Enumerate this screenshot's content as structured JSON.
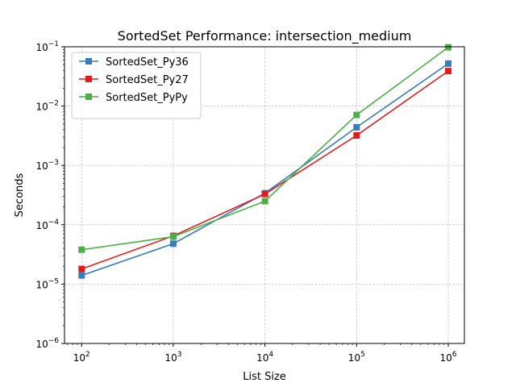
{
  "chart_data": {
    "type": "line",
    "title": "SortedSet Performance: intersection_medium",
    "xlabel": "List Size",
    "ylabel": "Seconds",
    "xscale": "log",
    "yscale": "log",
    "xlim": [
      65,
      1500000
    ],
    "ylim": [
      1e-06,
      0.1
    ],
    "x": [
      100,
      1000,
      10000,
      100000,
      1000000
    ],
    "xticks": [
      100,
      1000,
      10000,
      100000,
      1000000
    ],
    "xtick_labels": [
      {
        "base": "10",
        "exp": "2"
      },
      {
        "base": "10",
        "exp": "3"
      },
      {
        "base": "10",
        "exp": "4"
      },
      {
        "base": "10",
        "exp": "5"
      },
      {
        "base": "10",
        "exp": "6"
      }
    ],
    "yticks": [
      1e-06,
      1e-05,
      0.0001,
      0.001,
      0.01,
      0.1
    ],
    "ytick_labels": [
      {
        "base": "10",
        "exp": "−6"
      },
      {
        "base": "10",
        "exp": "−5"
      },
      {
        "base": "10",
        "exp": "−4"
      },
      {
        "base": "10",
        "exp": "−3"
      },
      {
        "base": "10",
        "exp": "−2"
      },
      {
        "base": "10",
        "exp": "−1"
      }
    ],
    "grid": true,
    "legend_position": "top-left",
    "series": [
      {
        "name": "SortedSet_Py36",
        "color": "#377eb8",
        "marker": "square",
        "values": [
          1.4e-05,
          4.8e-05,
          0.00034,
          0.0044,
          0.052
        ]
      },
      {
        "name": "SortedSet_Py27",
        "color": "#e41a1c",
        "marker": "square",
        "values": [
          1.8e-05,
          6.5e-05,
          0.00033,
          0.0032,
          0.039
        ]
      },
      {
        "name": "SortedSet_PyPy",
        "color": "#4daf4a",
        "marker": "square",
        "values": [
          3.8e-05,
          6.3e-05,
          0.00025,
          0.0071,
          0.098
        ]
      }
    ]
  }
}
